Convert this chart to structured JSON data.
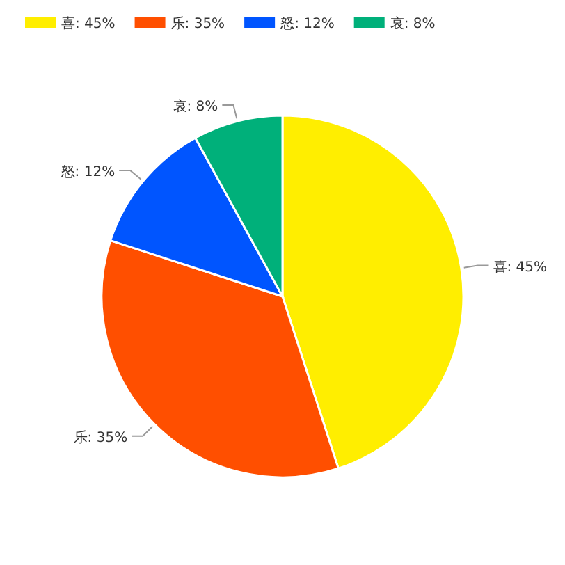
{
  "chart_data": {
    "type": "pie",
    "categories": [
      "喜: 45%",
      "乐: 35%",
      "怒: 12%",
      "哀: 8%"
    ],
    "values": [
      45,
      35,
      12,
      8
    ],
    "colors": [
      "#ffee00",
      "#ff4f00",
      "#0055ff",
      "#00b07a"
    ],
    "legend": "top left"
  }
}
